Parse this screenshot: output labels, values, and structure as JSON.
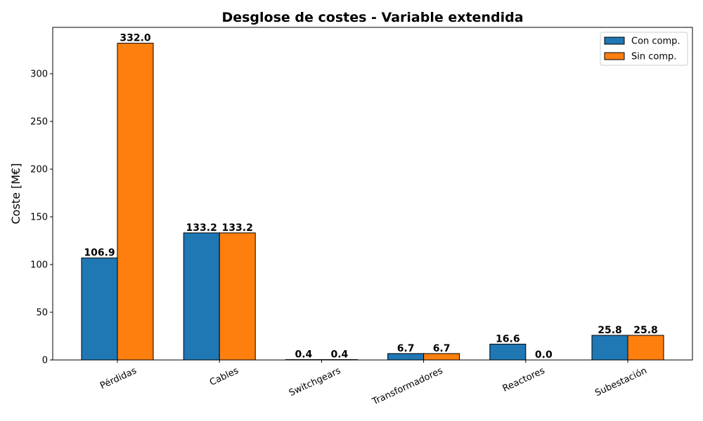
{
  "chart_data": {
    "type": "bar",
    "title": "Desglose de costes - Variable extendida",
    "xlabel": "",
    "ylabel": "Coste [M€]",
    "categories": [
      "Pérdidas",
      "Cables",
      "Switchgears",
      "Transformadores",
      "Reactores",
      "Subestación"
    ],
    "series": [
      {
        "name": "Con comp.",
        "values": [
          106.9,
          133.2,
          0.4,
          6.7,
          16.6,
          25.8
        ],
        "color": "#1f77b4"
      },
      {
        "name": "Sin comp.",
        "values": [
          332.0,
          133.2,
          0.4,
          6.7,
          0.0,
          25.8
        ],
        "color": "#ff7f0e"
      }
    ],
    "ylim": [
      0,
      348.6
    ],
    "yticks": [
      0,
      50,
      100,
      150,
      200,
      250,
      300
    ],
    "grid": false,
    "legend_position": "top-right",
    "xtick_rotation": 25
  }
}
